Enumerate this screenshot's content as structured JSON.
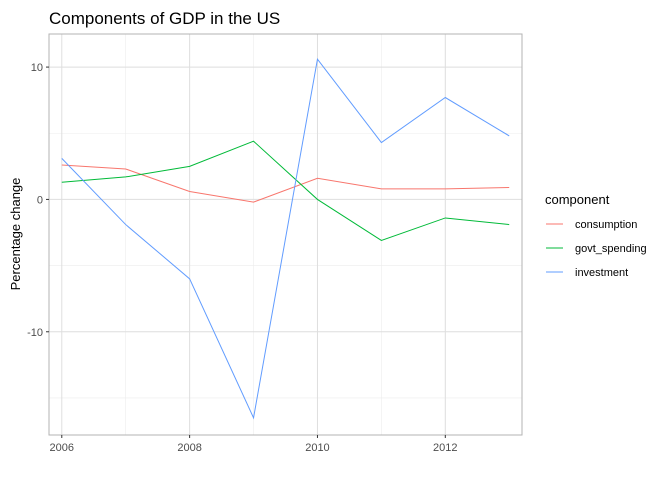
{
  "chart_data": {
    "type": "line",
    "title": "Components of GDP in the US",
    "xlabel": "",
    "ylabel": "Percentage change",
    "x": [
      2006,
      2007,
      2008,
      2009,
      2010,
      2011,
      2012,
      2013
    ],
    "xlim": [
      2005.8,
      2013.2
    ],
    "ylim": [
      -17.8,
      12.5
    ],
    "x_ticks": [
      2006,
      2008,
      2010,
      2012
    ],
    "x_tick_labels": [
      "2006",
      "2008",
      "2010",
      "2012"
    ],
    "y_ticks": [
      10,
      0,
      -10
    ],
    "y_tick_labels": [
      "10",
      "0",
      "-10"
    ],
    "grid": true,
    "legend": {
      "title": "component",
      "position": "right"
    },
    "series": [
      {
        "name": "consumption",
        "color": "#F8766D",
        "values": [
          2.6,
          2.3,
          0.6,
          -0.2,
          1.6,
          0.8,
          0.8,
          0.9
        ]
      },
      {
        "name": "govt_spending",
        "color": "#00BA38",
        "values": [
          1.3,
          1.7,
          2.5,
          4.4,
          0.0,
          -3.1,
          -1.4,
          -1.9
        ]
      },
      {
        "name": "investment",
        "color": "#619CFF",
        "values": [
          3.1,
          -1.9,
          -6.0,
          -16.5,
          10.6,
          4.3,
          7.7,
          4.8
        ]
      }
    ]
  }
}
